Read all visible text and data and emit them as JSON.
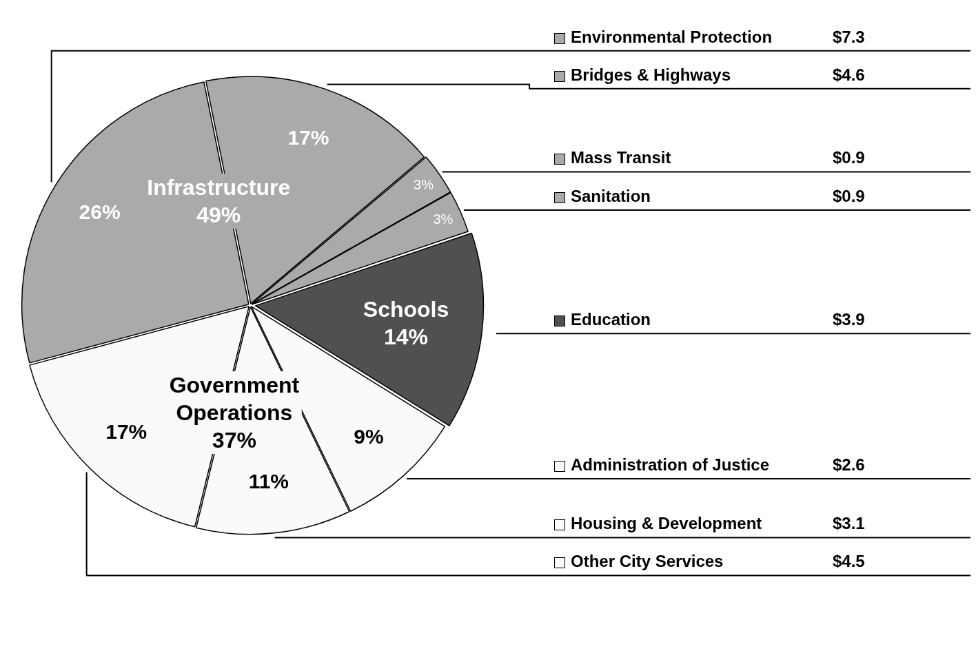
{
  "chart_data": {
    "type": "pie",
    "legend": "right",
    "categories": [
      "Environmental Protection",
      "Bridges & Highways",
      "Mass Transit",
      "Sanitation",
      "Education",
      "Administration of Justice",
      "Housing & Development",
      "Other City Services"
    ],
    "values": [
      26,
      17,
      3,
      3,
      14,
      9,
      11,
      17
    ],
    "colors": [
      "#aaaaaa",
      "#aaaaaa",
      "#aaaaaa",
      "#aaaaaa",
      "#505050",
      "#fafafa",
      "#fafafa",
      "#fafafa"
    ],
    "value_labels": [
      "26%",
      "17%",
      "3%",
      "3%",
      null,
      "9%",
      "11%",
      "17%"
    ],
    "annotations": [
      "Infrastructure\n49%",
      "Schools\n14%",
      "Government\nOperations\n37%",
      "$7.3",
      "$4.6",
      "$0.9",
      "$0.9",
      "$3.9",
      "$2.6",
      "$3.1",
      "$4.5"
    ]
  }
}
